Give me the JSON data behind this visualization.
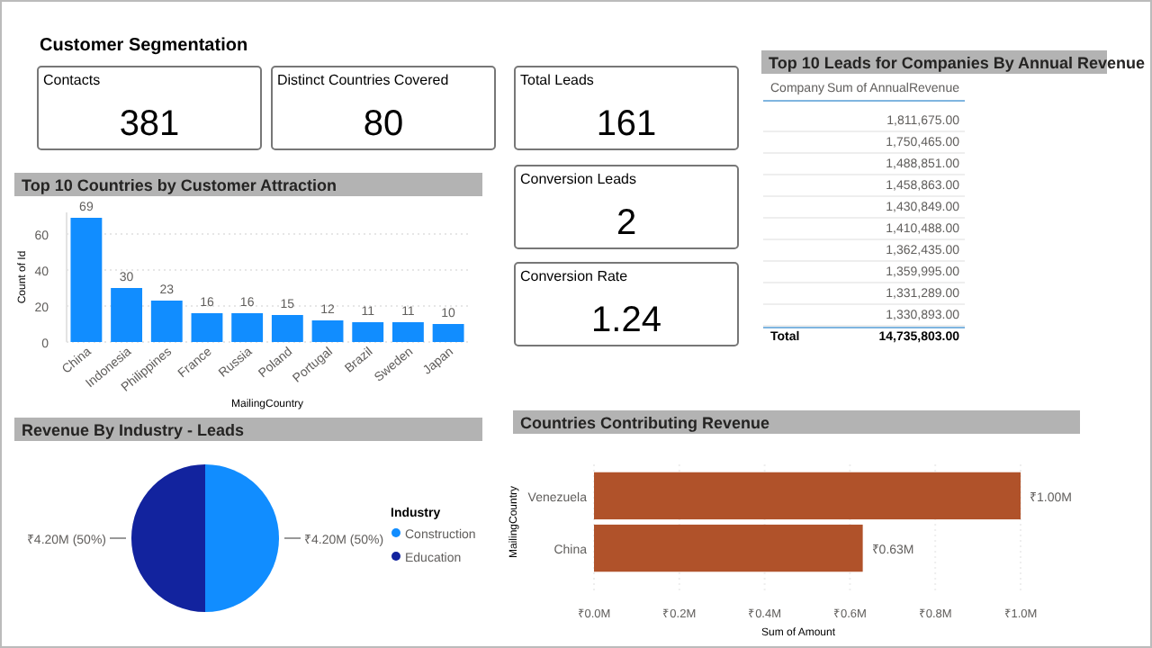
{
  "chart_data": [
    {
      "type": "other",
      "title": "Customer Segmentation",
      "categories": [
        "Contacts",
        "Distinct Countries Covered",
        "Total Leads",
        "Conversion Leads",
        "Conversion Rate"
      ],
      "values": [
        381,
        80,
        161,
        2,
        1.24
      ],
      "data_labels": true
    },
    {
      "type": "bar",
      "title": "Top 10 Countries by Customer Attraction",
      "xlabel": "MailingCountry",
      "ylabel": "Count of Id",
      "categories": [
        "China",
        "Indonesia",
        "Philippines",
        "France",
        "Russia",
        "Poland",
        "Portugal",
        "Brazil",
        "Sweden",
        "Japan"
      ],
      "values": [
        69,
        30,
        23,
        16,
        16,
        15,
        12,
        11,
        11,
        10
      ],
      "color": "#118dff",
      "ylim": [
        0,
        72
      ],
      "yticks": [
        0,
        20,
        40,
        60
      ],
      "data_labels": true,
      "grid": "y"
    },
    {
      "type": "pie",
      "title": "Revenue By Industry - Leads",
      "legend_title": "Industry",
      "categories": [
        "Construction",
        "Education"
      ],
      "values": [
        50,
        50
      ],
      "value_labels": [
        "₹4.20M (50%)",
        "₹4.20M (50%)"
      ],
      "colors": [
        "#118dff",
        "#12239e"
      ],
      "legend": "right"
    },
    {
      "type": "bar",
      "orientation": "horizontal",
      "title": "Countries Contributing Revenue",
      "xlabel": "Sum of Amount",
      "ylabel": "MailingCountry",
      "categories": [
        "Venezuela",
        "China"
      ],
      "values": [
        1.0,
        0.63
      ],
      "value_labels": [
        "₹1.00M",
        "₹0.63M"
      ],
      "color": "#b0522a",
      "xlim": [
        0,
        1.0
      ],
      "xticks": [
        {
          "value": 0,
          "label": "₹0.0M"
        },
        {
          "value": 0.2,
          "label": "₹0.2M"
        },
        {
          "value": 0.4,
          "label": "₹0.4M"
        },
        {
          "value": 0.6,
          "label": "₹0.6M"
        },
        {
          "value": 0.8,
          "label": "₹0.8M"
        },
        {
          "value": 1.0,
          "label": "₹1.0M"
        }
      ],
      "grid": "x"
    },
    {
      "type": "other",
      "title": "Top 10 Leads for Companies By Annual Revenue",
      "categories": [
        null,
        null,
        null,
        null,
        null,
        null,
        null,
        null,
        null,
        null
      ],
      "values": [
        1811675,
        1750465,
        1488851,
        1458863,
        1430849,
        1410488,
        1362435,
        1359995,
        1331289,
        1330893
      ],
      "value_labels": [
        "1,811,675.00",
        "1,750,465.00",
        "1,488,851.00",
        "1,458,863.00",
        "1,430,849.00",
        "1,410,488.00",
        "1,362,435.00",
        "1,359,995.00",
        "1,331,289.00",
        "1,330,893.00"
      ],
      "annotations": [
        "Company",
        "Sum of AnnualRevenue",
        "Total",
        "14,735,803.00"
      ]
    }
  ]
}
